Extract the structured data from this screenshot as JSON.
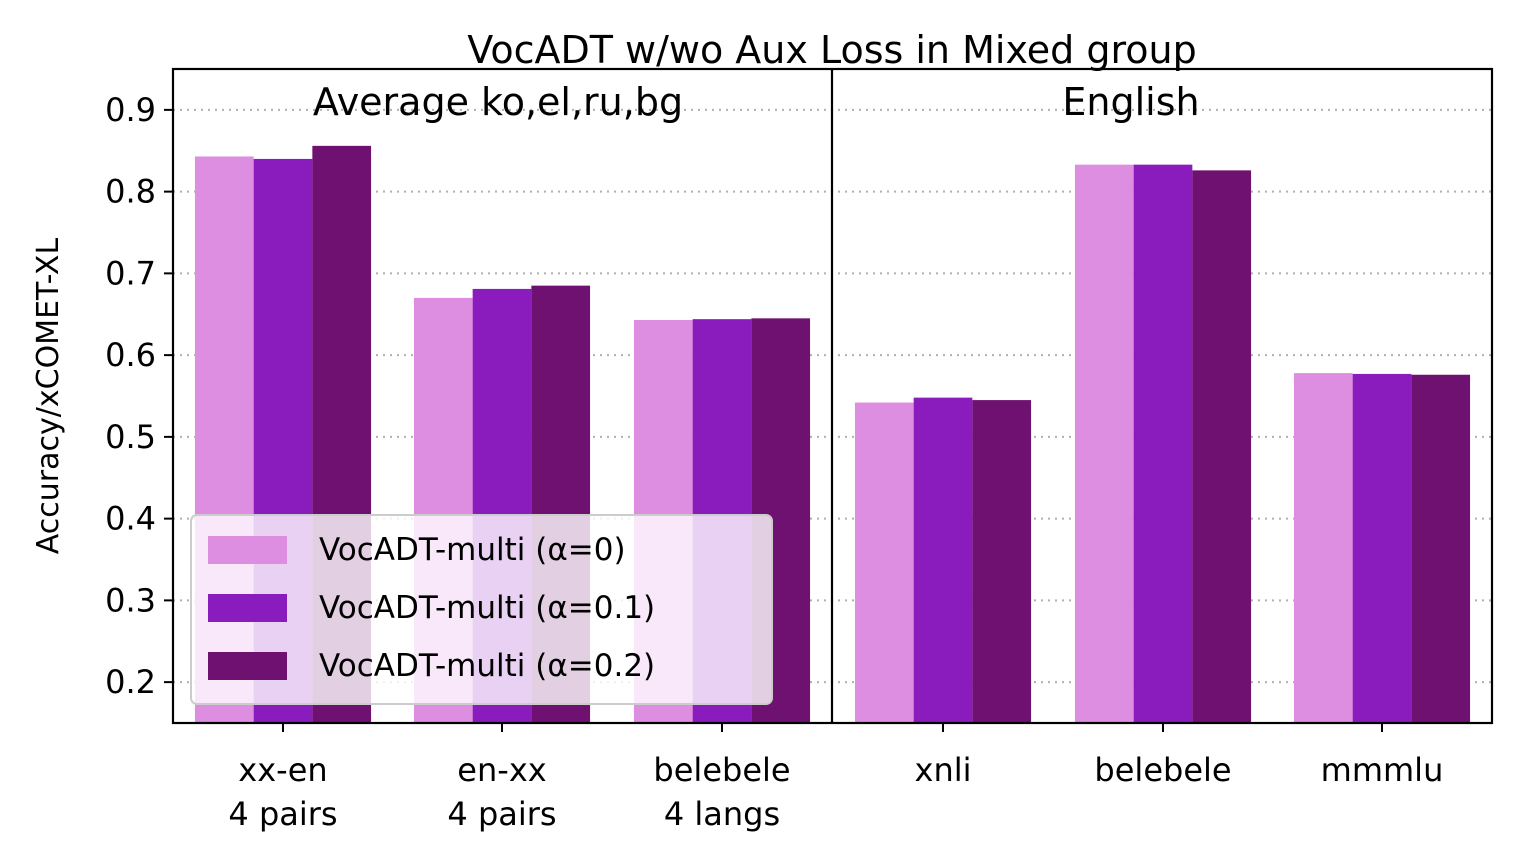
{
  "chart_data": {
    "type": "bar",
    "title": "VocADT w/wo Aux Loss in Mixed group",
    "ylabel": "Accuracy/xCOMET-XL",
    "xlabel": "",
    "ylim": [
      0.15,
      0.95
    ],
    "yticks": [
      "0.2",
      "0.3",
      "0.4",
      "0.5",
      "0.6",
      "0.7",
      "0.8",
      "0.9"
    ],
    "grid": "horizontal dotted",
    "legend_position": "lower-left",
    "series_names": [
      "VocADT-multi (α=0)",
      "VocADT-multi (α=0.1)",
      "VocADT-multi (α=0.2)"
    ],
    "colors": [
      "#dd8ee0",
      "#8a1cbd",
      "#6e1170"
    ],
    "panels": [
      {
        "title": "Average ko,el,ru,bg",
        "categories": [
          [
            "xx-en",
            "4 pairs"
          ],
          [
            "en-xx",
            "4 pairs"
          ],
          [
            "belebele",
            "4 langs"
          ]
        ],
        "series": [
          {
            "name": "VocADT-multi (α=0)",
            "values": [
              0.843,
              0.67,
              0.643
            ]
          },
          {
            "name": "VocADT-multi (α=0.1)",
            "values": [
              0.84,
              0.681,
              0.644
            ]
          },
          {
            "name": "VocADT-multi (α=0.2)",
            "values": [
              0.856,
              0.685,
              0.645
            ]
          }
        ]
      },
      {
        "title": "English",
        "categories": [
          [
            "xnli"
          ],
          [
            "belebele"
          ],
          [
            "mmmlu"
          ]
        ],
        "series": [
          {
            "name": "VocADT-multi (α=0)",
            "values": [
              0.542,
              0.833,
              0.578
            ]
          },
          {
            "name": "VocADT-multi (α=0.1)",
            "values": [
              0.548,
              0.833,
              0.577
            ]
          },
          {
            "name": "VocADT-multi (α=0.2)",
            "values": [
              0.545,
              0.826,
              0.576
            ]
          }
        ]
      }
    ]
  }
}
